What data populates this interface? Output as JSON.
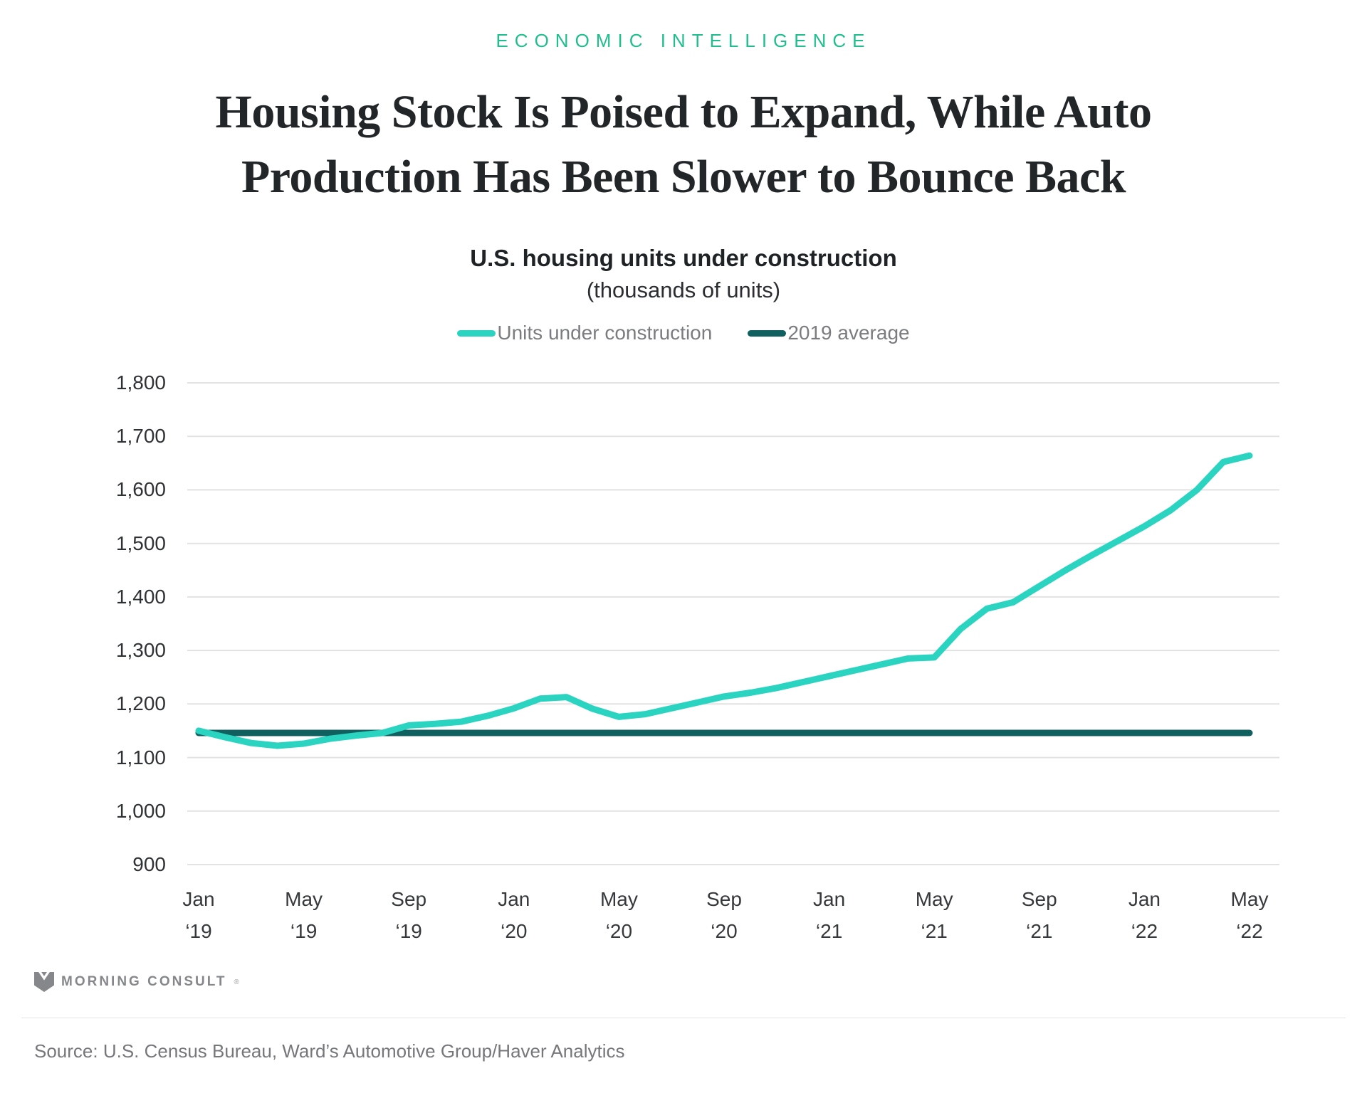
{
  "eyebrow": "ECONOMIC INTELLIGENCE",
  "title": "Housing Stock Is Poised to Expand, While Auto\nProduction Has Been Slower to Bounce Back",
  "subtitle": "U.S. housing units under construction",
  "subtitle_note": "(thousands of units)",
  "legend": {
    "items": [
      {
        "label": "Units under construction",
        "color": "#2BD4C1"
      },
      {
        "label": "2019 average",
        "color": "#10605F"
      }
    ]
  },
  "footer": {
    "logo_text": "MORNING CONSULT",
    "logo_reg": "®",
    "source": "Source: U.S. Census Bureau, Ward’s Automotive Group/Haver Analytics"
  },
  "chart_data": {
    "type": "line",
    "title": "U.S. housing units under construction",
    "units_label": "thousands of units",
    "x_range": {
      "start": "Jan 2019",
      "end": "May 2022",
      "frequency": "monthly"
    },
    "x_tick_labels": [
      {
        "m": "Jan",
        "y": "‘19"
      },
      {
        "m": "May",
        "y": "‘19"
      },
      {
        "m": "Sep",
        "y": "‘19"
      },
      {
        "m": "Jan",
        "y": "‘20"
      },
      {
        "m": "May",
        "y": "‘20"
      },
      {
        "m": "Sep",
        "y": "‘20"
      },
      {
        "m": "Jan",
        "y": "‘21"
      },
      {
        "m": "May",
        "y": "‘21"
      },
      {
        "m": "Sep",
        "y": "‘21"
      },
      {
        "m": "Jan",
        "y": "‘22"
      },
      {
        "m": "May",
        "y": "‘22"
      }
    ],
    "y_ticks": [
      1800,
      1700,
      1600,
      1500,
      1400,
      1300,
      1200,
      1100,
      1000,
      900
    ],
    "y_tick_labels": [
      "1,800",
      "1,700",
      "1,600",
      "1,500",
      "1,400",
      "1,300",
      "1,200",
      "1,100",
      "1,000",
      "900"
    ],
    "ylim": [
      900,
      1800
    ],
    "grid": true,
    "legend_position": "top",
    "series": [
      {
        "name": "Units under construction",
        "color": "#2BD4C1",
        "values": [
          1150,
          1138,
          1127,
          1122,
          1126,
          1135,
          1141,
          1146,
          1160,
          1163,
          1167,
          1178,
          1192,
          1210,
          1213,
          1191,
          1176,
          1181,
          1192,
          1203,
          1214,
          1221,
          1230,
          1241,
          1252,
          1263,
          1274,
          1285,
          1287,
          1340,
          1378,
          1390,
          1420,
          1450,
          1478,
          1505,
          1532,
          1562,
          1600,
          1652,
          1664
        ]
      },
      {
        "name": "2019 average",
        "color": "#10605F",
        "value": 1146
      }
    ]
  }
}
